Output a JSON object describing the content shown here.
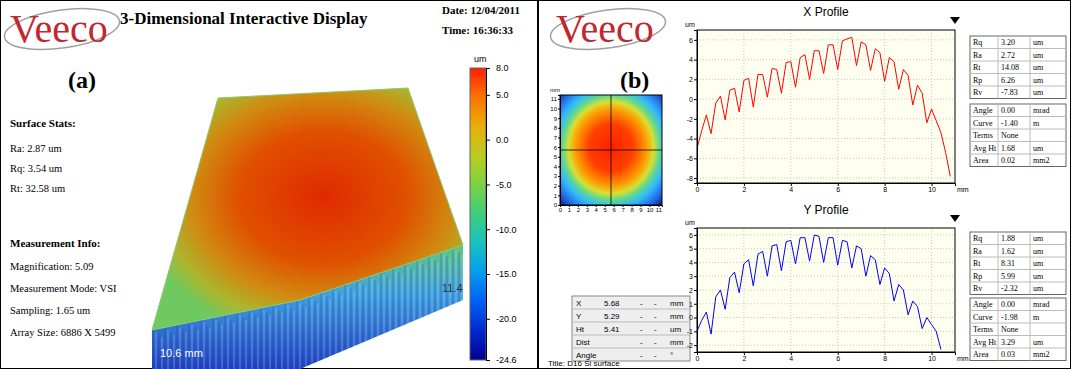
{
  "header": {
    "logo": "Veeco",
    "title": "3-Dimensional Interactive Display",
    "date": "Date: 12/04/2011",
    "time": "Time: 16:36:33"
  },
  "panel_a": {
    "label": "(a)",
    "surface_stats_title": "Surface Stats:",
    "surface_stats": [
      "Ra: 2.87 um",
      "Rq: 3.54 um",
      "Rt: 32.58 um"
    ],
    "measurement_info_title": "Measurement Info:",
    "measurement_info": [
      "Magnification: 5.09",
      "Measurement Mode: VSI",
      "Sampling: 1.65 um",
      "Array Size: 6886 X 5499"
    ],
    "x_size_label": "10.6 mm",
    "y_size_label": "11.4",
    "colorbar": {
      "unit": "um",
      "range": [
        -24.6,
        8
      ],
      "ticks": [
        {
          "value": 8,
          "label": "8.0"
        },
        {
          "value": 5,
          "label": "5.0"
        },
        {
          "value": 0,
          "label": "0.0"
        },
        {
          "value": -5,
          "label": "-5.0"
        },
        {
          "value": -10,
          "label": "-10.0"
        },
        {
          "value": -15,
          "label": "-15.0"
        },
        {
          "value": -20,
          "label": "-20.0"
        },
        {
          "value": -24.6,
          "label": "-24.6"
        }
      ]
    }
  },
  "panel_b": {
    "logo": "Veeco",
    "label": "(b)",
    "map": {
      "unit": "mm",
      "xlim": [
        0,
        11.4
      ],
      "ylim": [
        0,
        11.4
      ],
      "xticks": [
        0,
        1,
        2,
        3,
        4,
        5,
        6,
        7,
        8,
        9,
        10,
        11
      ],
      "yticks": [
        0,
        1,
        2,
        3,
        4,
        5,
        6,
        7,
        8,
        9,
        10,
        11
      ]
    },
    "cursor_table": [
      [
        "X",
        "5.68",
        "-",
        "-",
        "mm"
      ],
      [
        "Y",
        "5.29",
        "-",
        "-",
        "mm"
      ],
      [
        "Ht",
        "5.41",
        "-",
        "-",
        "um"
      ],
      [
        "Dist",
        "-",
        "-",
        "mm"
      ],
      [
        "Angle",
        "-",
        "-",
        "°"
      ]
    ],
    "title_line": "Title: D16 Si surface",
    "x_profile_stats": [
      [
        "Rq",
        "3.20",
        "um"
      ],
      [
        "Ra",
        "2.72",
        "um"
      ],
      [
        "Rt",
        "14.08",
        "um"
      ],
      [
        "Rp",
        "6.26",
        "um"
      ],
      [
        "Rv",
        "-7.83",
        "um"
      ]
    ],
    "x_profile_info": [
      [
        "Angle",
        "0.00",
        "mrad"
      ],
      [
        "Curve",
        "-1.40",
        "m"
      ],
      [
        "Terms",
        "None"
      ],
      [
        "Avg Ht",
        "1.68",
        "um"
      ],
      [
        "Area",
        "0.02",
        "mm2"
      ]
    ],
    "y_profile_stats": [
      [
        "Rq",
        "1.88",
        "um"
      ],
      [
        "Ra",
        "1.62",
        "um"
      ],
      [
        "Rt",
        "8.31",
        "um"
      ],
      [
        "Rp",
        "5.99",
        "um"
      ],
      [
        "Rv",
        "-2.32",
        "um"
      ]
    ],
    "y_profile_info": [
      [
        "Angle",
        "0.00",
        "mrad"
      ],
      [
        "Curve",
        "-1.98",
        "m"
      ],
      [
        "Terms",
        "None"
      ],
      [
        "Avg Ht",
        "3.29",
        "um"
      ],
      [
        "Area",
        "0.03",
        "mm2"
      ]
    ]
  },
  "chart_data": [
    {
      "type": "line",
      "title": "X Profile",
      "x_label": "mm",
      "y_label": "um",
      "color": "#ff0000",
      "grid": true,
      "xlim": [
        0,
        11
      ],
      "ylim": [
        -8.5,
        7
      ],
      "xticks": [
        0,
        2,
        4,
        6,
        8,
        10
      ],
      "yticks": [
        -8,
        -6,
        -4,
        -2,
        0,
        2,
        4,
        6
      ],
      "x": [
        0,
        0.2,
        0.4,
        0.6,
        0.8,
        1.0,
        1.2,
        1.4,
        1.6,
        1.8,
        2.0,
        2.2,
        2.4,
        2.6,
        2.8,
        3.0,
        3.2,
        3.4,
        3.6,
        3.8,
        4.0,
        4.2,
        4.4,
        4.6,
        4.8,
        5.0,
        5.2,
        5.4,
        5.6,
        5.8,
        6.0,
        6.2,
        6.4,
        6.6,
        6.8,
        7.0,
        7.2,
        7.4,
        7.6,
        7.8,
        8.0,
        8.2,
        8.4,
        8.6,
        8.8,
        9.0,
        9.2,
        9.4,
        9.6,
        9.8,
        10.0,
        10.2,
        10.4,
        10.6,
        10.8
      ],
      "values": [
        -5.0,
        -3.2,
        -1.6,
        -3.5,
        -0.4,
        0.3,
        -2.1,
        0.9,
        1.1,
        -1.3,
        1.9,
        2.1,
        -0.8,
        2.5,
        2.5,
        0.2,
        3.1,
        3.0,
        0.6,
        3.7,
        3.8,
        1.2,
        4.2,
        4.5,
        2.0,
        4.9,
        4.9,
        2.6,
        5.5,
        5.5,
        3.0,
        5.9,
        6.1,
        6.26,
        3.4,
        5.8,
        5.5,
        2.9,
        5.1,
        4.7,
        1.8,
        4.2,
        3.8,
        1.0,
        3.0,
        2.4,
        -0.6,
        1.4,
        0.6,
        -2.4,
        -1.0,
        -2.2,
        -3.4,
        -5.4,
        -7.83
      ]
    },
    {
      "type": "line",
      "title": "Y Profile",
      "x_label": "mm",
      "y_label": "um",
      "color": "#0000ff",
      "grid": true,
      "xlim": [
        0,
        11
      ],
      "ylim": [
        -2.5,
        6.5
      ],
      "xticks": [
        0,
        2,
        4,
        6,
        8,
        10
      ],
      "yticks": [
        -2,
        -1,
        0,
        1,
        2,
        3,
        4,
        5,
        6
      ],
      "x": [
        0,
        0.2,
        0.4,
        0.6,
        0.8,
        1.0,
        1.2,
        1.4,
        1.6,
        1.8,
        2.0,
        2.2,
        2.4,
        2.6,
        2.8,
        3.0,
        3.2,
        3.4,
        3.6,
        3.8,
        4.0,
        4.2,
        4.4,
        4.6,
        4.8,
        5.0,
        5.2,
        5.4,
        5.6,
        5.8,
        6.0,
        6.2,
        6.4,
        6.6,
        6.8,
        7.0,
        7.2,
        7.4,
        7.6,
        7.8,
        8.0,
        8.2,
        8.4,
        8.6,
        8.8,
        9.0,
        9.2,
        9.4,
        9.6,
        9.8,
        10.0,
        10.2,
        10.4
      ],
      "values": [
        -1.0,
        -0.2,
        0.4,
        -1.2,
        1.5,
        2.0,
        0.6,
        2.9,
        3.3,
        1.8,
        3.9,
        4.2,
        2.3,
        4.6,
        4.8,
        3.0,
        5.2,
        5.3,
        3.4,
        5.5,
        5.6,
        3.9,
        5.8,
        5.8,
        4.1,
        5.99,
        5.9,
        4.0,
        5.8,
        5.8,
        3.8,
        5.6,
        5.5,
        3.6,
        5.2,
        5.0,
        3.0,
        4.5,
        4.2,
        2.4,
        3.6,
        3.2,
        1.2,
        2.4,
        2.0,
        0.2,
        1.2,
        0.8,
        -0.8,
        0.0,
        -0.5,
        -1.0,
        -2.32
      ]
    }
  ]
}
